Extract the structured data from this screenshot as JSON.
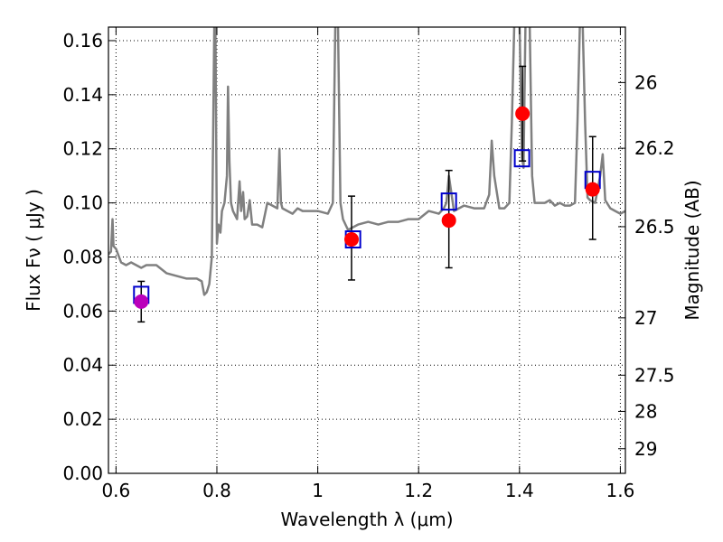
{
  "chart_data": {
    "type": "line",
    "xlabel": "Wavelength  λ (μm)",
    "ylabel": "Flux  Fν ( μJy )",
    "ylabel_right": "Magnitude (AB)",
    "xlim": [
      0.585,
      1.61
    ],
    "ylim": [
      0.0,
      0.165
    ],
    "grid": true,
    "x_ticks": [
      "0.6",
      "0.8",
      "1",
      "1.2",
      "1.4",
      "1.6"
    ],
    "x_tick_values": [
      0.6,
      0.8,
      1.0,
      1.2,
      1.4,
      1.6
    ],
    "y_ticks": [
      "0.00",
      "0.02",
      "0.04",
      "0.06",
      "0.08",
      "0.10",
      "0.12",
      "0.14",
      "0.16"
    ],
    "y_tick_values": [
      0.0,
      0.02,
      0.04,
      0.06,
      0.08,
      0.1,
      0.12,
      0.14,
      0.16
    ],
    "right_ticks": [
      {
        "label": "26",
        "flux": 0.1445
      },
      {
        "label": "26.2",
        "flux": 0.1202
      },
      {
        "label": "26.5",
        "flux": 0.0912
      },
      {
        "label": "27",
        "flux": 0.0575
      },
      {
        "label": "27.5",
        "flux": 0.0363
      },
      {
        "label": "28",
        "flux": 0.0229
      },
      {
        "label": "29",
        "flux": 0.0091
      }
    ],
    "spectrum": {
      "color": "#808080",
      "x": [
        0.585,
        0.59,
        0.593,
        0.595,
        0.6,
        0.61,
        0.62,
        0.63,
        0.64,
        0.65,
        0.66,
        0.68,
        0.7,
        0.72,
        0.74,
        0.76,
        0.77,
        0.775,
        0.78,
        0.785,
        0.79,
        0.795,
        0.797,
        0.8,
        0.803,
        0.807,
        0.81,
        0.815,
        0.82,
        0.822,
        0.825,
        0.828,
        0.832,
        0.84,
        0.845,
        0.848,
        0.852,
        0.855,
        0.86,
        0.865,
        0.87,
        0.88,
        0.89,
        0.9,
        0.91,
        0.92,
        0.924,
        0.927,
        0.93,
        0.94,
        0.95,
        0.96,
        0.97,
        0.98,
        0.99,
        1.0,
        1.02,
        1.03,
        1.035,
        1.038,
        1.04,
        1.045,
        1.05,
        1.055,
        1.06,
        1.08,
        1.1,
        1.12,
        1.14,
        1.16,
        1.18,
        1.2,
        1.22,
        1.24,
        1.25,
        1.255,
        1.26,
        1.27,
        1.29,
        1.31,
        1.33,
        1.34,
        1.345,
        1.35,
        1.36,
        1.37,
        1.38,
        1.385,
        1.39,
        1.395,
        1.4,
        1.405,
        1.408,
        1.412,
        1.415,
        1.418,
        1.42,
        1.425,
        1.43,
        1.44,
        1.45,
        1.46,
        1.47,
        1.48,
        1.49,
        1.5,
        1.51,
        1.515,
        1.52,
        1.525,
        1.53,
        1.535,
        1.54,
        1.55,
        1.56,
        1.565,
        1.57,
        1.58,
        1.59,
        1.6,
        1.61
      ],
      "y": [
        0.081,
        0.082,
        0.094,
        0.084,
        0.083,
        0.078,
        0.077,
        0.078,
        0.077,
        0.076,
        0.077,
        0.077,
        0.074,
        0.073,
        0.072,
        0.072,
        0.071,
        0.066,
        0.067,
        0.07,
        0.08,
        0.168,
        0.168,
        0.085,
        0.092,
        0.089,
        0.097,
        0.1,
        0.11,
        0.143,
        0.115,
        0.1,
        0.097,
        0.094,
        0.108,
        0.097,
        0.104,
        0.094,
        0.095,
        0.101,
        0.092,
        0.092,
        0.091,
        0.1,
        0.099,
        0.098,
        0.12,
        0.1,
        0.098,
        0.097,
        0.096,
        0.098,
        0.097,
        0.097,
        0.097,
        0.097,
        0.096,
        0.1,
        0.168,
        0.168,
        0.168,
        0.1,
        0.094,
        0.092,
        0.09,
        0.092,
        0.093,
        0.092,
        0.093,
        0.093,
        0.094,
        0.094,
        0.097,
        0.096,
        0.098,
        0.1,
        0.11,
        0.097,
        0.099,
        0.098,
        0.098,
        0.103,
        0.123,
        0.11,
        0.098,
        0.098,
        0.1,
        0.13,
        0.168,
        0.168,
        0.168,
        0.117,
        0.113,
        0.168,
        0.168,
        0.168,
        0.168,
        0.11,
        0.1,
        0.1,
        0.1,
        0.101,
        0.099,
        0.1,
        0.099,
        0.099,
        0.1,
        0.13,
        0.168,
        0.168,
        0.13,
        0.102,
        0.101,
        0.1,
        0.11,
        0.118,
        0.101,
        0.098,
        0.097,
        0.096,
        0.097
      ]
    },
    "model_points": {
      "marker": "open-square",
      "color": "#0000cc",
      "x": [
        0.65,
        1.07,
        1.26,
        1.405,
        1.545
      ],
      "y": [
        0.066,
        0.0865,
        0.1005,
        0.1165,
        0.1085
      ]
    },
    "observed_points": {
      "marker": "filled-circle",
      "x": [
        0.65,
        1.067,
        1.26,
        1.406,
        1.545
      ],
      "y": [
        0.0635,
        0.0865,
        0.0935,
        0.133,
        0.105
      ],
      "yerr_low": [
        0.0075,
        0.015,
        0.0175,
        0.0175,
        0.0185
      ],
      "yerr_high": [
        0.0075,
        0.016,
        0.0185,
        0.0175,
        0.0195
      ],
      "colors": [
        "#bb00bb",
        "#ff0000",
        "#ff0000",
        "#ff0000",
        "#ff0000"
      ]
    }
  }
}
